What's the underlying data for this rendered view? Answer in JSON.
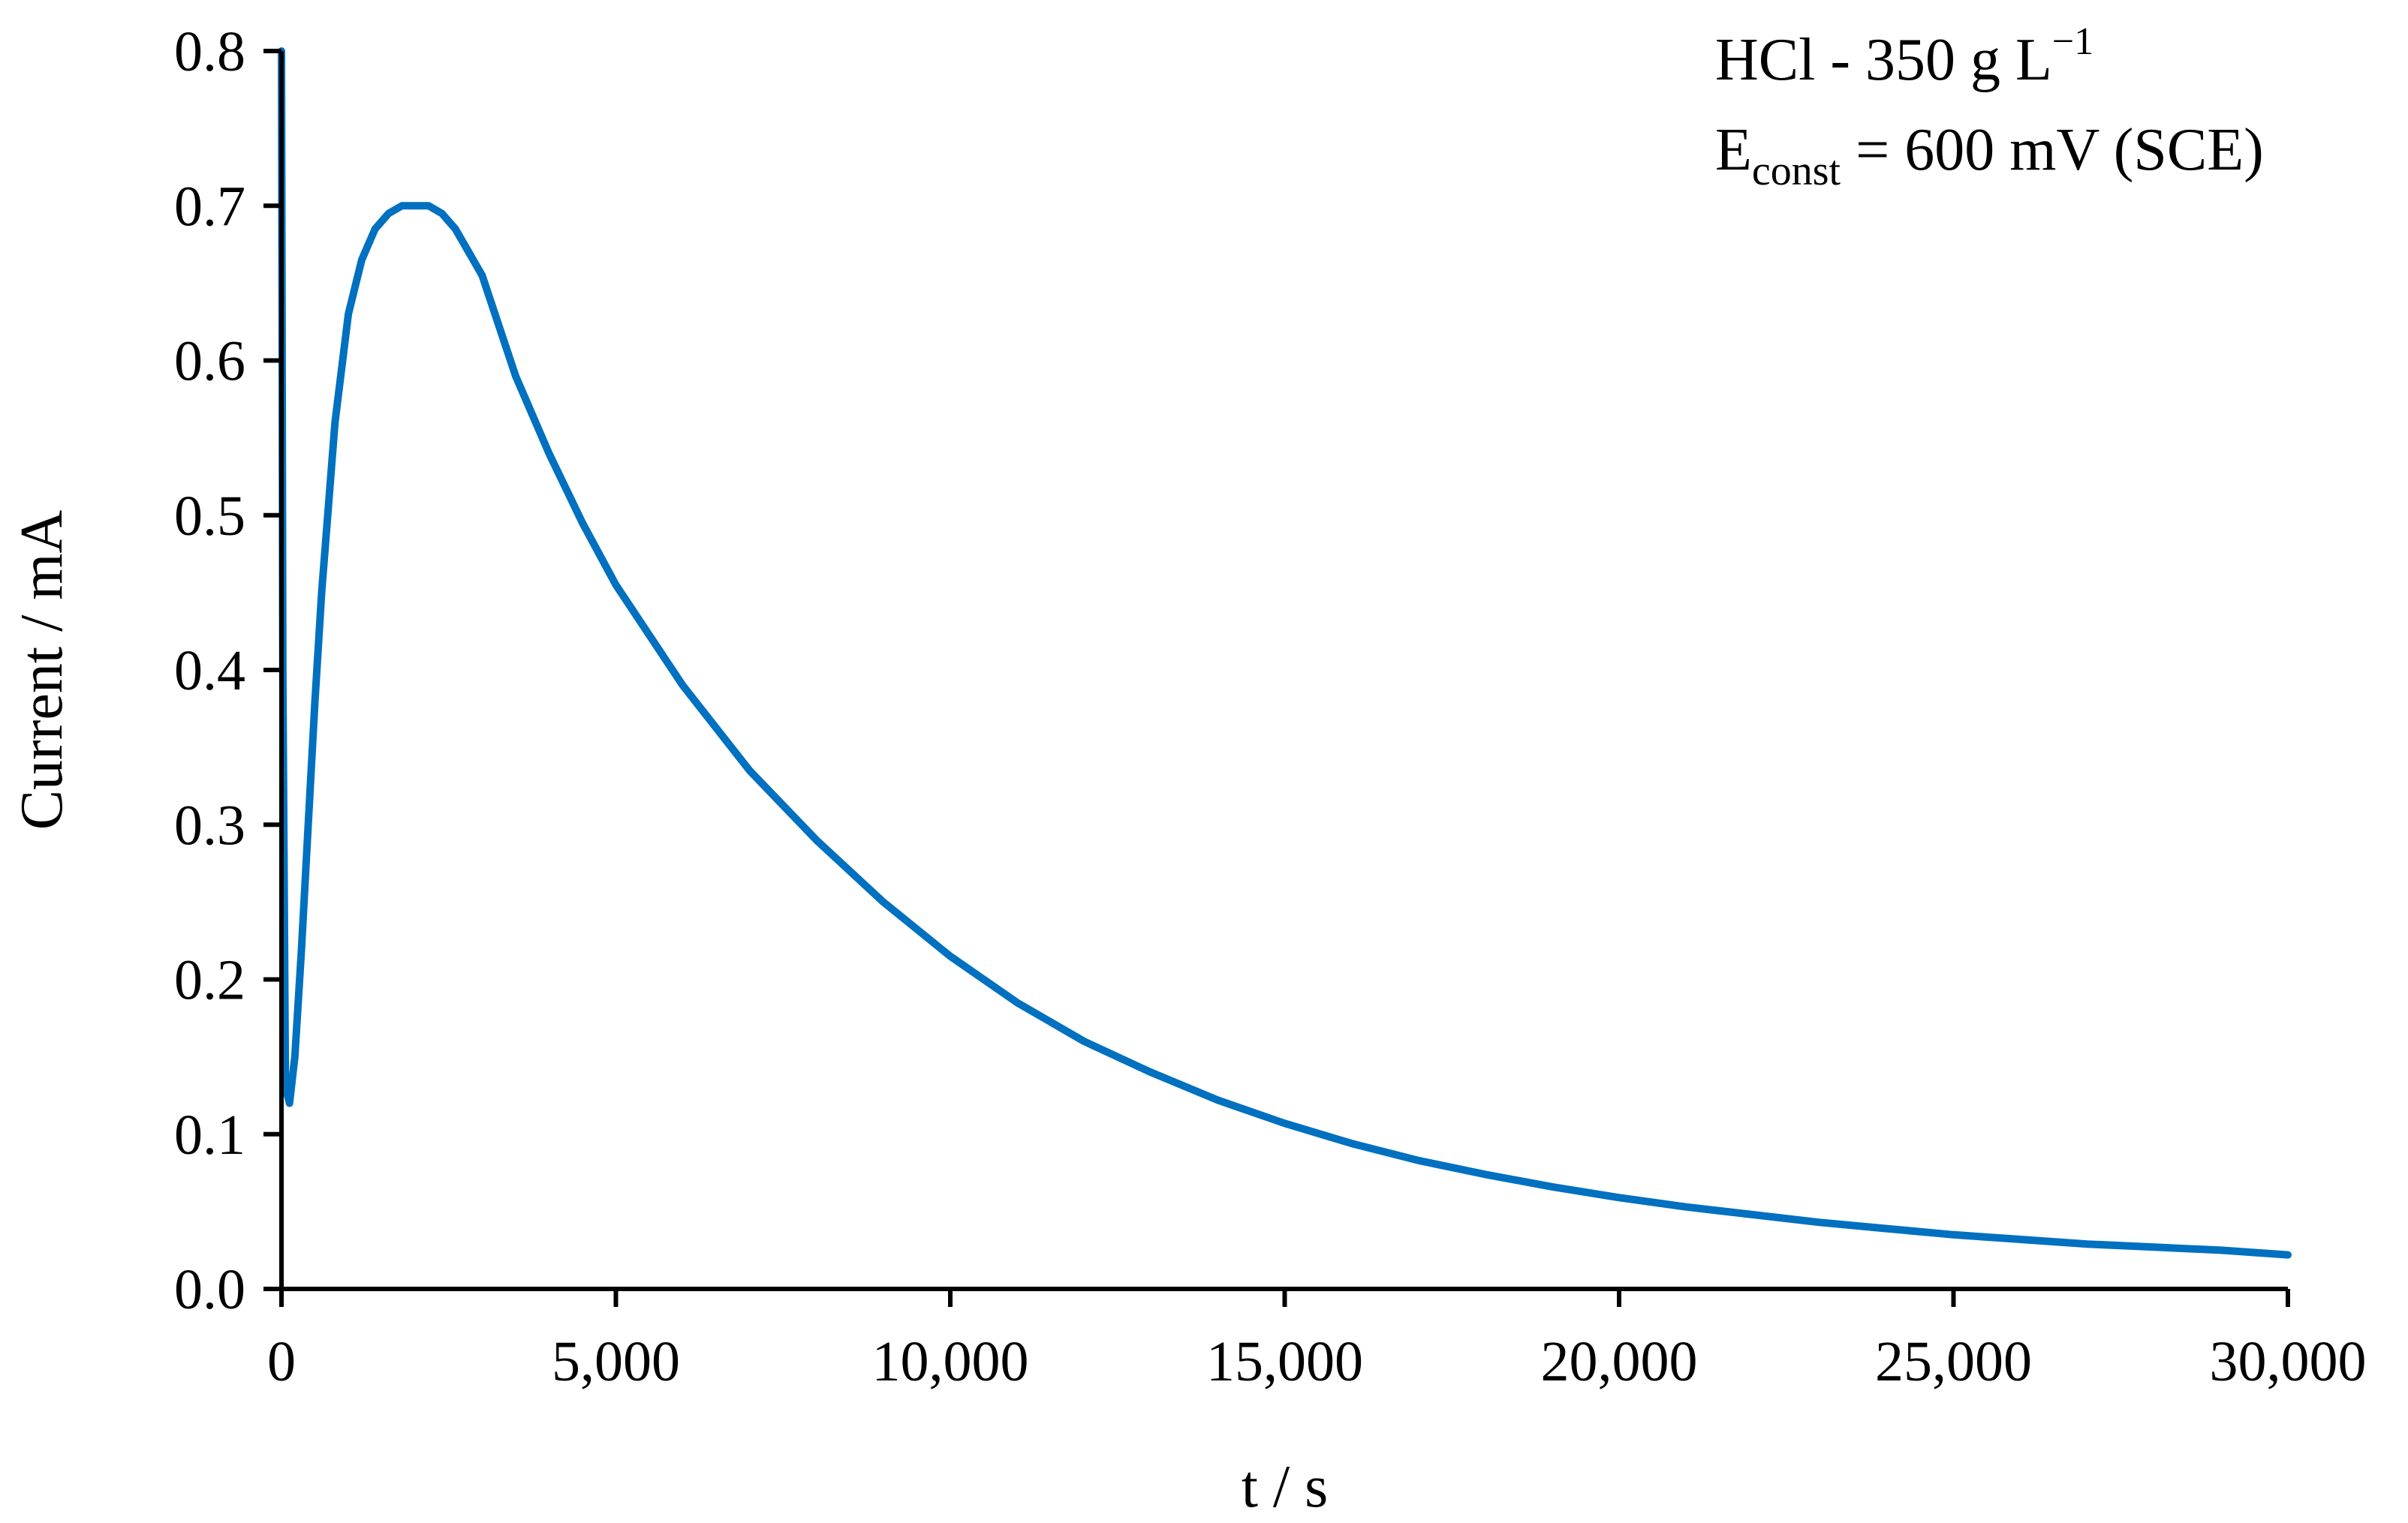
{
  "chart_data": {
    "type": "line",
    "title": "",
    "xlabel": "t / s",
    "ylabel": "Current / mA",
    "xlim": [
      0,
      30000
    ],
    "ylim": [
      0,
      0.8
    ],
    "xticks": [
      0,
      5000,
      10000,
      15000,
      20000,
      25000,
      30000
    ],
    "xtick_labels": [
      "0",
      "5,000",
      "10,000",
      "15,000",
      "20,000",
      "25,000",
      "30,000"
    ],
    "yticks": [
      0,
      0.1,
      0.2,
      0.3,
      0.4,
      0.5,
      0.6,
      0.7,
      0.8
    ],
    "ytick_labels": [
      "0.0",
      "0.1",
      "0.2",
      "0.3",
      "0.4",
      "0.5",
      "0.6",
      "0.7",
      "0.8"
    ],
    "grid": false,
    "legend": "none",
    "series_color": "#0070c0",
    "annotation": {
      "line1": "HCl - 350 g L",
      "line1_sup": "−1",
      "line2_main": "E",
      "line2_sub": "const",
      "line2_rest": " = 600 mV (SCE)"
    },
    "series": [
      {
        "x": [
          0,
          20,
          60,
          120,
          200,
          300,
          400,
          500,
          600,
          800,
          1000,
          1200,
          1400,
          1600,
          1800,
          2000,
          2200,
          2400,
          2600,
          2800,
          3000,
          3500,
          4000,
          4500,
          5000,
          6000,
          7000,
          8000,
          9000,
          10000,
          11000,
          12000,
          13000,
          14000,
          15000,
          16000,
          17000,
          18000,
          19000,
          20000,
          21000,
          22000,
          23000,
          24000,
          25000,
          26000,
          27000,
          28000,
          29000,
          30000
        ],
        "y": [
          0.8,
          0.4,
          0.13,
          0.12,
          0.15,
          0.22,
          0.3,
          0.38,
          0.45,
          0.56,
          0.63,
          0.665,
          0.685,
          0.695,
          0.7,
          0.7,
          0.7,
          0.695,
          0.685,
          0.67,
          0.655,
          0.59,
          0.54,
          0.495,
          0.455,
          0.39,
          0.335,
          0.29,
          0.25,
          0.215,
          0.185,
          0.16,
          0.14,
          0.122,
          0.107,
          0.094,
          0.083,
          0.074,
          0.066,
          0.059,
          0.053,
          0.048,
          0.043,
          0.039,
          0.035,
          0.032,
          0.029,
          0.027,
          0.025,
          0.022
        ]
      }
    ]
  }
}
